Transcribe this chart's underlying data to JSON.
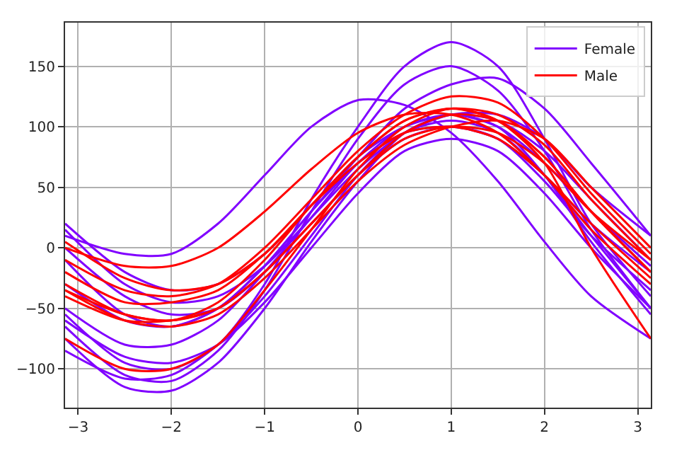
{
  "chart_data": {
    "type": "line",
    "x": [
      -3.14,
      -2.5,
      -2,
      -1.5,
      -1,
      -0.5,
      0,
      0.5,
      1,
      1.5,
      2,
      2.5,
      3.14
    ],
    "series": [
      {
        "name": "Female",
        "color": "#8000ff",
        "values": [
          -55,
          -95,
          -100,
          -80,
          -30,
          40,
          100,
          150,
          170,
          150,
          90,
          20,
          -40
        ]
      },
      {
        "color": "#8000ff",
        "values": [
          -65,
          -105,
          -110,
          -85,
          -35,
          30,
          90,
          135,
          150,
          130,
          80,
          15,
          -50
        ]
      },
      {
        "color": "#8000ff",
        "values": [
          10,
          -5,
          -5,
          20,
          60,
          100,
          122,
          118,
          95,
          55,
          5,
          -40,
          -75
        ]
      },
      {
        "color": "#8000ff",
        "values": [
          -30,
          -60,
          -65,
          -50,
          -15,
          30,
          75,
          115,
          135,
          140,
          115,
          70,
          10
        ]
      },
      {
        "color": "#8000ff",
        "values": [
          20,
          -20,
          -35,
          -30,
          -5,
          35,
          75,
          100,
          110,
          105,
          80,
          40,
          -10
        ]
      },
      {
        "color": "#8000ff",
        "values": [
          -75,
          -115,
          -118,
          -95,
          -50,
          5,
          55,
          95,
          110,
          100,
          60,
          5,
          -55
        ]
      },
      {
        "color": "#8000ff",
        "values": [
          -10,
          -55,
          -65,
          -50,
          -15,
          30,
          70,
          95,
          100,
          90,
          60,
          20,
          -20
        ]
      },
      {
        "color": "#8000ff",
        "values": [
          -50,
          -80,
          -80,
          -60,
          -20,
          25,
          70,
          100,
          110,
          100,
          70,
          30,
          -15
        ]
      },
      {
        "color": "#8000ff",
        "values": [
          0,
          -40,
          -55,
          -50,
          -20,
          20,
          60,
          90,
          100,
          90,
          55,
          10,
          -35
        ]
      },
      {
        "color": "#8000ff",
        "values": [
          -60,
          -90,
          -95,
          -80,
          -45,
          0,
          45,
          80,
          90,
          80,
          45,
          0,
          -50
        ]
      },
      {
        "color": "#8000ff",
        "values": [
          15,
          -30,
          -45,
          -40,
          -15,
          25,
          65,
          95,
          110,
          110,
          90,
          50,
          10
        ]
      },
      {
        "color": "#8000ff",
        "values": [
          -85,
          -108,
          -105,
          -80,
          -40,
          10,
          60,
          95,
          105,
          95,
          60,
          10,
          -50
        ]
      },
      {
        "name": "Male",
        "color": "#ff0000",
        "values": [
          -75,
          -100,
          -100,
          -80,
          -35,
          15,
          65,
          100,
          115,
          105,
          70,
          0,
          -75
        ]
      },
      {
        "color": "#ff0000",
        "values": [
          0,
          -15,
          -15,
          0,
          30,
          65,
          95,
          110,
          110,
          95,
          60,
          15,
          -30
        ]
      },
      {
        "color": "#ff0000",
        "values": [
          -35,
          -55,
          -60,
          -45,
          -10,
          35,
          75,
          105,
          115,
          105,
          75,
          30,
          -20
        ]
      },
      {
        "color": "#ff0000",
        "values": [
          -10,
          -35,
          -40,
          -30,
          0,
          40,
          80,
          110,
          125,
          120,
          90,
          45,
          -5
        ]
      },
      {
        "color": "#ff0000",
        "values": [
          -30,
          -55,
          -60,
          -50,
          -20,
          20,
          60,
          90,
          100,
          95,
          70,
          30,
          -10
        ]
      },
      {
        "color": "#ff0000",
        "values": [
          -20,
          -45,
          -45,
          -35,
          -5,
          35,
          70,
          95,
          100,
          90,
          60,
          20,
          -25
        ]
      },
      {
        "color": "#ff0000",
        "values": [
          5,
          -25,
          -35,
          -30,
          -5,
          35,
          75,
          105,
          115,
          110,
          85,
          40,
          -10
        ]
      },
      {
        "color": "#ff0000",
        "values": [
          -40,
          -60,
          -60,
          -50,
          -20,
          20,
          60,
          95,
          110,
          105,
          75,
          30,
          -20
        ]
      },
      {
        "color": "#ff0000",
        "values": [
          -35,
          -60,
          -65,
          -55,
          -25,
          15,
          55,
          85,
          100,
          105,
          90,
          50,
          0
        ]
      }
    ],
    "xlim": [
      -3.14,
      3.14
    ],
    "xticks": [
      -3,
      -2,
      -1,
      0,
      1,
      2,
      3
    ],
    "ylim": [
      -132,
      186
    ],
    "yticks": [
      -100,
      -50,
      0,
      50,
      100,
      150
    ],
    "grid": true,
    "legend": "top right"
  }
}
